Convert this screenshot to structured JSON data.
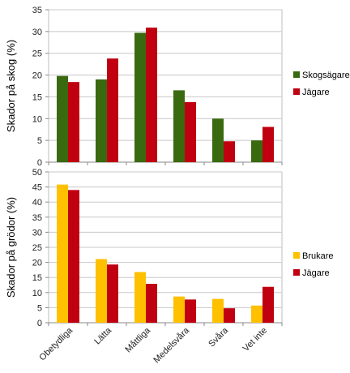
{
  "chart_data": [
    {
      "type": "bar",
      "categories": [
        "Obetydliga",
        "Lätta",
        "Måttliga",
        "Medelsvåra",
        "Svåra",
        "Vet inte"
      ],
      "ylabel": "Skador på skog (%)",
      "xlabel": "",
      "ylim": [
        0,
        35
      ],
      "yticks": [
        0,
        5,
        10,
        15,
        20,
        25,
        30,
        35
      ],
      "grid": true,
      "legend_position": "right",
      "show_category_labels": false,
      "series": [
        {
          "name": "Skogsägare",
          "color": "#3a6a10",
          "values": [
            19.8,
            19.0,
            29.7,
            16.5,
            10.0,
            5.0
          ]
        },
        {
          "name": "Jägare",
          "color": "#c00010",
          "values": [
            18.4,
            23.8,
            30.9,
            13.8,
            4.8,
            8.1
          ]
        }
      ]
    },
    {
      "type": "bar",
      "categories": [
        "Obetydliga",
        "Lätta",
        "Måttliga",
        "Medelsvåra",
        "Svåra",
        "Vet inte"
      ],
      "ylabel": "Skador på grödor (%)",
      "xlabel": "",
      "ylim": [
        0,
        50
      ],
      "yticks": [
        0,
        5,
        10,
        15,
        20,
        25,
        30,
        35,
        40,
        45,
        50
      ],
      "grid": true,
      "legend_position": "right",
      "show_category_labels": true,
      "series": [
        {
          "name": "Brukare",
          "color": "#ffc000",
          "values": [
            45.8,
            21.1,
            16.8,
            8.7,
            7.9,
            5.7
          ]
        },
        {
          "name": "Jägare",
          "color": "#c00010",
          "values": [
            44.0,
            19.3,
            12.9,
            7.7,
            4.8,
            11.9
          ]
        }
      ]
    }
  ]
}
